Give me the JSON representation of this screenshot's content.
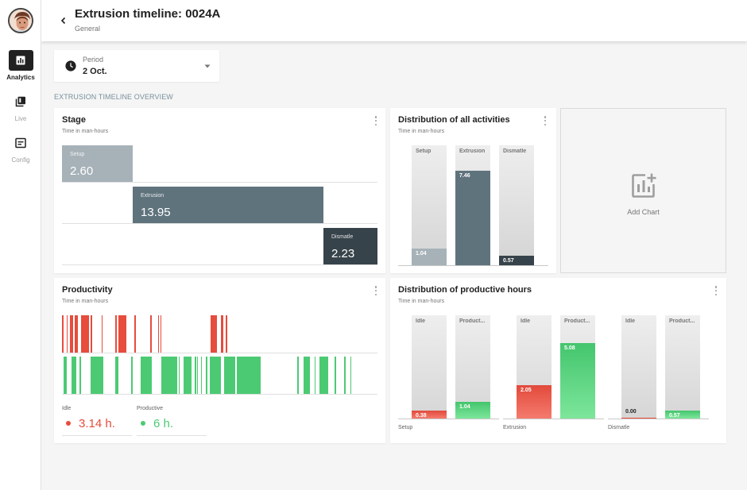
{
  "header": {
    "title": "Extrusion timeline: 0024A",
    "subtitle": "General"
  },
  "sidebar": {
    "items": [
      {
        "label": "Analytics",
        "icon": "analytics-icon",
        "active": true
      },
      {
        "label": "Live",
        "icon": "live-icon",
        "active": false
      },
      {
        "label": "Config",
        "icon": "config-icon",
        "active": false
      }
    ]
  },
  "period": {
    "label": "Period",
    "value": "2 Oct."
  },
  "section_title": "EXTRUSION TIMELINE OVERVIEW",
  "colors": {
    "idle": "#e74c3c",
    "productive": "#4cca73",
    "setup": "#a6b2b8",
    "extrusion": "#5f737d",
    "dismatle": "#37434a"
  },
  "stage": {
    "title": "Stage",
    "subtitle": "Time in man-hours",
    "items": [
      {
        "label": "Setup",
        "value": "2.60"
      },
      {
        "label": "Extrusion",
        "value": "13.95"
      },
      {
        "label": "Dismatle",
        "value": "2.23"
      }
    ]
  },
  "distribution_all": {
    "title": "Distribution of all activities",
    "subtitle": "Time in man-hours",
    "bars": [
      {
        "label": "Setup",
        "value": "1.04",
        "fraction": 0.14
      },
      {
        "label": "Extrusion",
        "value": "7.46",
        "fraction": 0.79
      },
      {
        "label": "Dismatle",
        "value": "0.57",
        "fraction": 0.08
      }
    ]
  },
  "add_chart": {
    "label": "Add Chart"
  },
  "productivity": {
    "title": "Productivity",
    "subtitle": "Time in man-hours",
    "idle": {
      "label": "Idle",
      "value": "3.14 h."
    },
    "productive": {
      "label": "Productive",
      "value": "6 h."
    },
    "idle_segments": [
      [
        0.0,
        0.5
      ],
      [
        1.5,
        1.8
      ],
      [
        2.5,
        3.5
      ],
      [
        4.0,
        5.0
      ],
      [
        6.0,
        8.5
      ],
      [
        9.0,
        9.5
      ],
      [
        12.5,
        12.8
      ],
      [
        17.0,
        17.5
      ],
      [
        18.0,
        20.5
      ],
      [
        23.0,
        23.4
      ],
      [
        28.0,
        28.4
      ],
      [
        30.5,
        30.8
      ],
      [
        31.2,
        31.5
      ],
      [
        47.0,
        49.0
      ],
      [
        50.5,
        51.2
      ],
      [
        51.8,
        52.3
      ]
    ],
    "productive_segments": [
      [
        0.5,
        1.5
      ],
      [
        3.0,
        4.5
      ],
      [
        5.5,
        6.0
      ],
      [
        9.0,
        13.0
      ],
      [
        17.0,
        18.0
      ],
      [
        22.0,
        22.5
      ],
      [
        25.0,
        28.5
      ],
      [
        31.5,
        36.5
      ],
      [
        37.0,
        37.3
      ],
      [
        38.5,
        41.0
      ],
      [
        42.0,
        42.5
      ],
      [
        42.8,
        43.2
      ],
      [
        44.0,
        44.3
      ],
      [
        45.5,
        46.0
      ],
      [
        46.8,
        50.5
      ],
      [
        51.5,
        55.0
      ],
      [
        55.5,
        63.0
      ],
      [
        74.5,
        75.0
      ],
      [
        76.5,
        78.5
      ],
      [
        80.0,
        80.3
      ],
      [
        81.5,
        84.5
      ],
      [
        86.5,
        87.0
      ],
      [
        89.5,
        90.0
      ],
      [
        91.5,
        91.8
      ]
    ]
  },
  "distribution_productive": {
    "title": "Distribution of productive hours",
    "subtitle": "Time in man-hours",
    "groups": [
      {
        "label": "Setup",
        "bars": [
          {
            "label": "Idle",
            "value": "0.38",
            "fraction": 0.08
          },
          {
            "label": "Product...",
            "value": "1.04",
            "fraction": 0.16
          }
        ]
      },
      {
        "label": "Extrusion",
        "bars": [
          {
            "label": "Idle",
            "value": "2.05",
            "fraction": 0.32
          },
          {
            "label": "Product...",
            "value": "5.08",
            "fraction": 0.73
          }
        ]
      },
      {
        "label": "Dismatle",
        "bars": [
          {
            "label": "Idle",
            "value": "0.00",
            "fraction": 0.0
          },
          {
            "label": "Product...",
            "value": "0.57",
            "fraction": 0.08
          }
        ]
      }
    ]
  }
}
